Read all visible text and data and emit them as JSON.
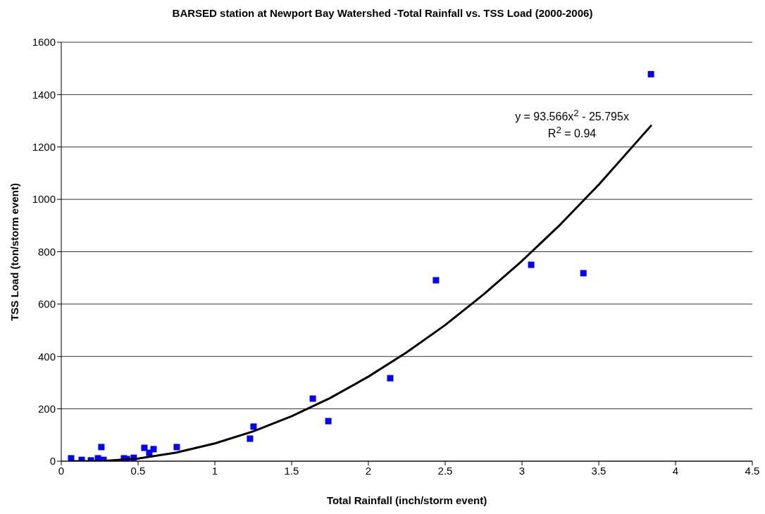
{
  "chart_data": {
    "type": "scatter",
    "title": "BARSED station at Newport Bay Watershed -Total Rainfall vs. TSS Load (2000-2006)",
    "xlabel": "Total Rainfall (inch/storm event)",
    "ylabel": "TSS Load (ton/storm event)",
    "xlim": [
      0,
      4.5
    ],
    "xticks": [
      0,
      0.5,
      1,
      1.5,
      2,
      2.5,
      3,
      3.5,
      4,
      4.5
    ],
    "ylim": [
      0,
      1600
    ],
    "yticks": [
      0,
      200,
      400,
      600,
      800,
      1000,
      1200,
      1400,
      1600
    ],
    "grid": "y",
    "legend": false,
    "marker": "square",
    "series": [
      {
        "color": "#0000ff",
        "x": [
          0.064,
          0.133,
          0.193,
          0.239,
          0.275,
          0.261,
          0.408,
          0.427,
          0.472,
          0.541,
          0.573,
          0.601,
          0.752,
          1.229,
          1.252,
          1.638,
          1.739,
          2.142,
          2.44,
          3.06,
          3.4,
          3.84
        ],
        "values": [
          11,
          5,
          3,
          11,
          5,
          54,
          11,
          8,
          13,
          51,
          32,
          46,
          54,
          86,
          132,
          239,
          153,
          317,
          691,
          750,
          718,
          1478
        ]
      },
      {
        "type": "line",
        "color": "#000000",
        "line_style": "solid",
        "marker": "none",
        "x": [
          0.06,
          0.25,
          0.5,
          0.75,
          1,
          1.25,
          1.5,
          1.75,
          2,
          2.25,
          2.5,
          2.75,
          3,
          3.25,
          3.5,
          3.84
        ],
        "values": [
          0,
          0,
          10,
          33,
          68,
          114,
          172,
          241,
          323,
          416,
          520,
          637,
          765,
          904,
          1056,
          1281
        ]
      }
    ],
    "annotations": [
      "y = 93.566x$^{2}$ - 25.795x",
      "R$^{2}$ = 0.94"
    ]
  }
}
